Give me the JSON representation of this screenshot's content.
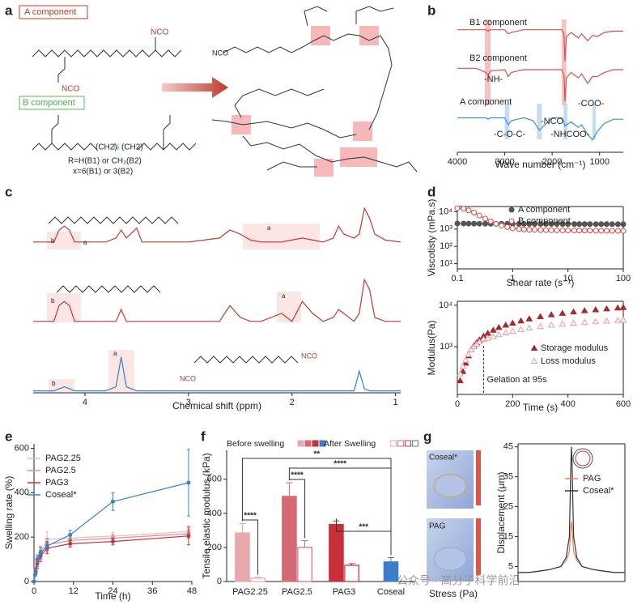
{
  "panels": [
    "a",
    "b",
    "c",
    "d",
    "e",
    "f",
    "g"
  ],
  "scheme": {
    "a_component": "A component",
    "b_component": "B component",
    "nco": "NCO",
    "chain": "(CH2)",
    "r_note": "R=H(B1) or CH₂(B2)",
    "x_note": "x=6(B1) or 3(B2)"
  },
  "simulation": {
    "labels": [
      "Coseal*",
      "PAG"
    ]
  },
  "watermark": "公众号 · 高分子科学前沿",
  "chart_data": [
    {
      "type": "line",
      "xlabel": "Wave number (cm⁻¹)",
      "xlim": [
        4000,
        500
      ],
      "xticks": [
        4000,
        3000,
        2000,
        1000
      ],
      "x": [
        4000,
        3600,
        3400,
        3350,
        3300,
        3000,
        2930,
        2860,
        2600,
        2400,
        2270,
        2000,
        1800,
        1750,
        1730,
        1700,
        1600,
        1450,
        1380,
        1250,
        1150,
        1050,
        900,
        700,
        500
      ],
      "annotations": [
        "-NH-",
        "-NCO",
        "-COO-",
        "-C-O-C-",
        "-NHCOO-"
      ],
      "series": [
        {
          "name": "B1 component",
          "color": "#d94f4f",
          "values": [
            89,
            89,
            89,
            88,
            89,
            89,
            86,
            87,
            89,
            89,
            89,
            89,
            89,
            86,
            66,
            84,
            87,
            83,
            86,
            81,
            85,
            84,
            87,
            88,
            88
          ]
        },
        {
          "name": "B2 component",
          "color": "#d94f4f",
          "values": [
            61,
            61,
            58,
            56,
            59,
            60,
            55,
            58,
            60,
            60,
            60,
            60,
            60,
            56,
            37,
            54,
            58,
            54,
            57,
            50,
            55,
            55,
            58,
            60,
            60
          ],
          "bands": [
            {
              "from": 3420,
              "to": 3300,
              "color": "#f5b3b3"
            },
            {
              "from": 1800,
              "to": 1700,
              "color": "#f5b3b3"
            }
          ]
        },
        {
          "name": "A component",
          "color": "#3f8fd6",
          "values": [
            25,
            25,
            25,
            24,
            25,
            25,
            20,
            23,
            25,
            23,
            16,
            25,
            25,
            22,
            19,
            20,
            22,
            18,
            20,
            13,
            9,
            15,
            21,
            24,
            24
          ],
          "bands": [
            {
              "from": 3000,
              "to": 2900,
              "color": "#b7d3ef"
            },
            {
              "from": 2320,
              "to": 2220,
              "color": "#b7d3ef"
            },
            {
              "from": 1760,
              "to": 1680,
              "color": "#b7d3ef"
            },
            {
              "from": 1150,
              "to": 1080,
              "color": "#b7d3ef"
            }
          ]
        }
      ]
    },
    {
      "type": "line",
      "xlabel": "Chemical shift (ppm)",
      "xlim": [
        4.5,
        0.95
      ],
      "xticks": [
        4,
        3,
        2,
        1
      ],
      "peak_labels": [
        "a",
        "b"
      ],
      "x": [
        4.5,
        4.3,
        4.25,
        4.2,
        4.15,
        4.1,
        3.8,
        3.7,
        3.65,
        3.6,
        3.5,
        3.45,
        3.0,
        2.7,
        2.6,
        2.5,
        2.4,
        2.3,
        2.1,
        2.0,
        1.9,
        1.8,
        1.7,
        1.6,
        1.55,
        1.5,
        1.4,
        1.35,
        1.3,
        1.25,
        1.2,
        1.1,
        0.95
      ],
      "series": [
        {
          "color": "#c0392b",
          "values": [
            76,
            76,
            82,
            84,
            82,
            76,
            76,
            78,
            82,
            78,
            83,
            76,
            76,
            78,
            82,
            80,
            77,
            76,
            76,
            77,
            78,
            77,
            76,
            78,
            84,
            80,
            78,
            80,
            93,
            88,
            80,
            77,
            76
          ]
        },
        {
          "color": "#c0392b",
          "values": [
            36,
            36,
            44,
            46,
            44,
            36,
            36,
            36,
            42,
            36,
            36,
            36,
            36,
            36,
            44,
            38,
            36,
            36,
            40,
            36,
            46,
            40,
            36,
            38,
            42,
            40,
            36,
            40,
            57,
            52,
            38,
            36,
            36
          ]
        },
        {
          "color": "#2e86c1",
          "values": [
            1,
            1,
            2,
            3,
            2,
            1,
            1,
            3,
            18,
            3,
            1,
            1,
            1,
            1,
            1,
            1,
            1,
            1,
            1,
            1,
            1,
            1,
            1,
            1,
            1,
            1,
            1,
            11,
            2,
            1,
            1,
            1,
            1
          ]
        }
      ]
    },
    {
      "type": "line",
      "xlabel": "Shear rate (s⁻¹)",
      "ylabel": "Viscotisty (mPa.s)",
      "xscale": "log",
      "yscale": "log",
      "xlim": [
        0.1,
        100
      ],
      "ylim": [
        5,
        20000
      ],
      "xticks": [
        0.1,
        1,
        10,
        100
      ],
      "yticks": [
        {
          "value": 10,
          "label": "10¹"
        },
        {
          "value": 100,
          "label": "10²"
        },
        {
          "value": 1000,
          "label": "10³"
        },
        {
          "value": 10000,
          "label": "10⁴"
        }
      ],
      "x": [
        0.1,
        0.13,
        0.16,
        0.2,
        0.25,
        0.32,
        0.4,
        0.5,
        0.63,
        0.8,
        1,
        1.3,
        1.6,
        2,
        2.5,
        3.2,
        4,
        5,
        6.3,
        8,
        10,
        13,
        16,
        20,
        25,
        32,
        40,
        50,
        63,
        80,
        100
      ],
      "series": [
        {
          "name": "A component",
          "color": "#555555",
          "marker": "circle",
          "filled": true,
          "values": [
            2100,
            2080,
            2060,
            2050,
            2040,
            2030,
            2020,
            2010,
            2000,
            2000,
            2000,
            1990,
            1990,
            1980,
            1980,
            1970,
            1970,
            1960,
            1960,
            1950,
            1950,
            1950,
            1940,
            1940,
            1930,
            1930,
            1920,
            1920,
            1910,
            1910,
            1900
          ]
        },
        {
          "name": "B component",
          "color": "#d64545",
          "marker": "circle",
          "filled": false,
          "values": [
            16000,
            15000,
            12000,
            9000,
            6000,
            4000,
            2800,
            2000,
            1600,
            1300,
            1100,
            1000,
            950,
            900,
            900,
            880,
            870,
            860,
            850,
            840,
            830,
            830,
            820,
            820,
            810,
            800,
            800,
            790,
            790,
            780,
            780
          ]
        }
      ]
    },
    {
      "type": "scatter",
      "xlabel": "Time (s)",
      "ylabel": "Modulus(Pa)",
      "yscale": "log",
      "xlim": [
        0,
        600
      ],
      "ylim": [
        70,
        12500
      ],
      "xticks": [
        0,
        200,
        400,
        600
      ],
      "yticks": [
        {
          "value": 1000,
          "label": "10³"
        },
        {
          "value": 10000,
          "label": "10⁴"
        }
      ],
      "annotation": {
        "text": "Gelation at 95s",
        "x": 95
      },
      "x": [
        10,
        20,
        30,
        40,
        50,
        60,
        70,
        80,
        95,
        110,
        130,
        150,
        175,
        200,
        230,
        260,
        300,
        340,
        380,
        420,
        460,
        500,
        540,
        580,
        600
      ],
      "series": [
        {
          "name": "Storage modulus",
          "color": "#a52a2a",
          "marker": "triangle",
          "filled": true,
          "values": [
            150,
            250,
            400,
            600,
            850,
            1050,
            1250,
            1450,
            1800,
            2100,
            2500,
            2900,
            3300,
            3700,
            4200,
            4700,
            5300,
            5900,
            6400,
            6900,
            7400,
            7800,
            8200,
            8600,
            8800
          ]
        },
        {
          "name": "Loss modulus",
          "color": "#ee9aa4",
          "marker": "triangle",
          "filled": false,
          "values": [
            220,
            330,
            470,
            650,
            850,
            1000,
            1150,
            1300,
            1500,
            1600,
            1750,
            1950,
            2150,
            2350,
            2600,
            2800,
            3050,
            3300,
            3500,
            3700,
            3850,
            4000,
            4150,
            4300,
            4350
          ]
        }
      ]
    },
    {
      "type": "line",
      "xlabel": "Time (h)",
      "ylabel": "Swelling rate (%)",
      "xlim": [
        0,
        48
      ],
      "ylim": [
        0,
        620
      ],
      "xticks": [
        0,
        12,
        24,
        36,
        48
      ],
      "yticks": [
        0,
        200,
        400,
        600
      ],
      "x": [
        0,
        0.5,
        1,
        2,
        4,
        11,
        24,
        47
      ],
      "series": [
        {
          "name": "PAG2.25",
          "color": "#f2b6b6",
          "marker": "dot",
          "values": [
            0,
            55,
            95,
            130,
            190,
            195,
            205,
            225
          ],
          "errors": [
            0,
            20,
            25,
            30,
            35,
            20,
            15,
            25
          ]
        },
        {
          "name": "PAG2.5",
          "color": "#e38b90",
          "marker": "dot",
          "values": [
            0,
            50,
            90,
            125,
            165,
            185,
            195,
            215
          ],
          "errors": [
            0,
            18,
            22,
            25,
            30,
            20,
            15,
            20
          ]
        },
        {
          "name": "PAG3",
          "color": "#c8323a",
          "marker": "dot",
          "values": [
            0,
            45,
            80,
            115,
            150,
            170,
            180,
            205
          ],
          "errors": [
            0,
            15,
            20,
            25,
            25,
            15,
            15,
            40
          ]
        },
        {
          "name": "Coseal*",
          "color": "#3a82c4",
          "marker": "dot",
          "values": [
            0,
            40,
            100,
            130,
            160,
            210,
            360,
            445
          ],
          "errors": [
            0,
            15,
            20,
            25,
            20,
            20,
            40,
            150
          ]
        }
      ]
    },
    {
      "type": "bar",
      "ylabel": "Tensile elastic modulus (kPa)",
      "ylim": [
        0,
        770
      ],
      "yticks": [
        0,
        200,
        400,
        600
      ],
      "categories": [
        "PAG2.25",
        "PAG2.5",
        "PAG3",
        "Coseal"
      ],
      "significance": [
        "****",
        "****",
        "****",
        "***",
        "**"
      ],
      "series": [
        {
          "name": "Before swelling",
          "filled": true,
          "colors": [
            "#e8a9ad",
            "#d46a73",
            "#c73039",
            "#3d7cc9"
          ],
          "values": [
            285,
            500,
            335,
            115
          ],
          "errors": [
            55,
            80,
            20,
            25
          ]
        },
        {
          "name": "After Swelling",
          "filled": false,
          "colors": [
            "#e8a9ad",
            "#d46a73",
            "#c73039",
            "#3d7cc9"
          ],
          "values": [
            20,
            200,
            95,
            null
          ],
          "errors": [
            5,
            40,
            10,
            null
          ]
        }
      ]
    },
    {
      "type": "line",
      "xlabel": "Stress (Pa)",
      "ylabel": "Displacement (μm)",
      "xlim": [
        0,
        10
      ],
      "ylim": [
        0,
        46
      ],
      "yticks": [
        5,
        15,
        25,
        35,
        45
      ],
      "x": [
        0,
        1,
        2,
        3,
        4,
        4.5,
        4.8,
        4.95,
        5,
        5.05,
        5.2,
        5.5,
        6,
        7,
        8,
        9,
        10
      ],
      "series": [
        {
          "name": "PAG",
          "color": "#e8825a",
          "values": [
            3,
            3,
            3.5,
            4,
            5,
            7,
            10,
            18,
            20,
            18,
            10,
            7,
            5,
            4,
            3.5,
            3,
            3
          ]
        },
        {
          "name": "Coseal*",
          "color": "#333333",
          "values": [
            3,
            3,
            3.5,
            4,
            5,
            8,
            15,
            40,
            45,
            40,
            15,
            8,
            5,
            4,
            3.5,
            3,
            3
          ]
        }
      ]
    }
  ]
}
